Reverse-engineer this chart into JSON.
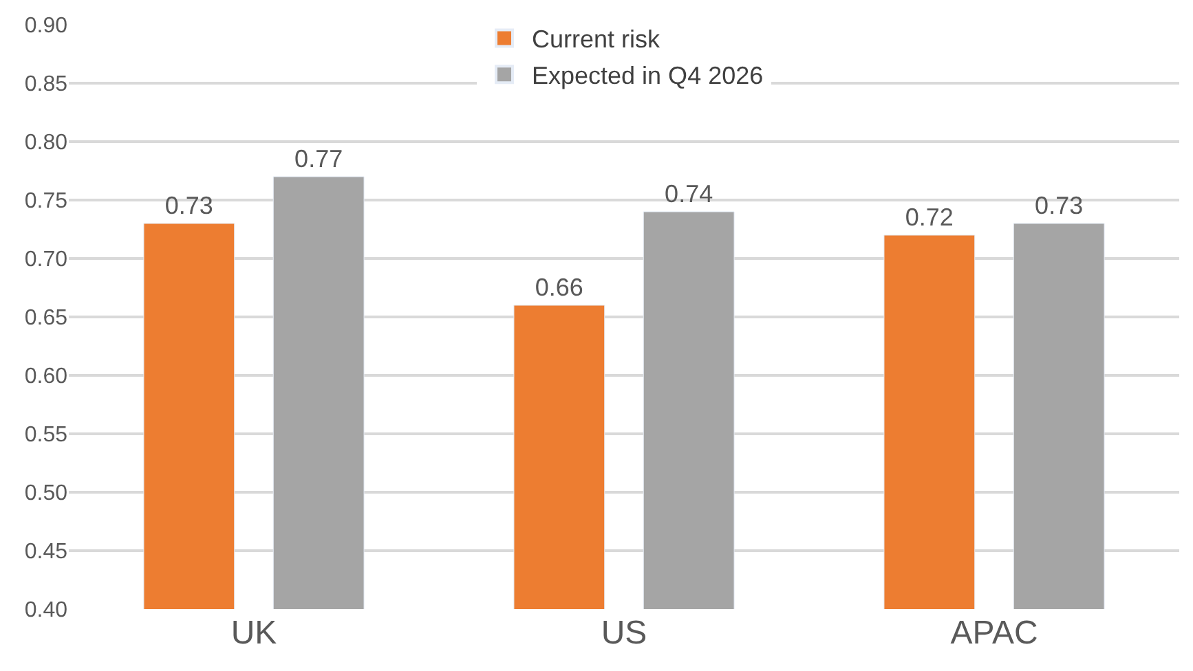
{
  "chart_data": {
    "type": "bar",
    "categories": [
      "UK",
      "US",
      "APAC"
    ],
    "series": [
      {
        "name": "Current risk",
        "color": "#ed7d31",
        "values": [
          0.73,
          0.66,
          0.72
        ]
      },
      {
        "name": "Expected in Q4 2026",
        "color": "#a5a5a5",
        "values": [
          0.77,
          0.74,
          0.73
        ]
      }
    ],
    "ylim": [
      0.4,
      0.9
    ],
    "yticks": [
      {
        "value": 0.4,
        "label": "0.40"
      },
      {
        "value": 0.45,
        "label": "0.45"
      },
      {
        "value": 0.5,
        "label": "0.50"
      },
      {
        "value": 0.55,
        "label": "0.55"
      },
      {
        "value": 0.6,
        "label": "0.60"
      },
      {
        "value": 0.65,
        "label": "0.65"
      },
      {
        "value": 0.7,
        "label": "0.70"
      },
      {
        "value": 0.75,
        "label": "0.75"
      },
      {
        "value": 0.8,
        "label": "0.80"
      },
      {
        "value": 0.85,
        "label": "0.85"
      },
      {
        "value": 0.9,
        "label": "0.90"
      }
    ],
    "grid": "y",
    "legend": "top",
    "data_labels": true
  }
}
